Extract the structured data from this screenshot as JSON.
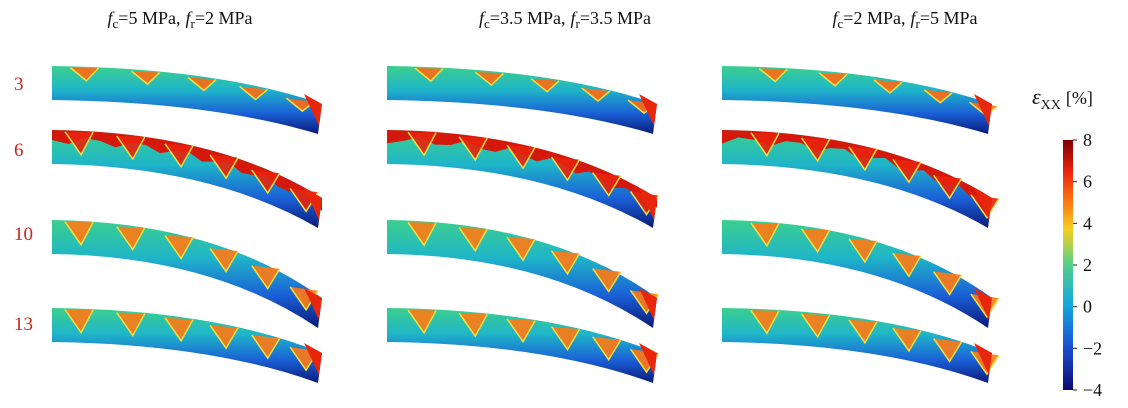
{
  "figure": {
    "symbol": "f",
    "sub_c": "c",
    "sub_r": "r",
    "equals": "=",
    "separator": ",",
    "columns": [
      {
        "fc": "5 MPa",
        "fr": "2 MPa"
      },
      {
        "fc": "3.5 MPa",
        "fr": "3.5 MPa"
      },
      {
        "fc": "2 MPa",
        "fr": "5 MPa"
      }
    ],
    "rows": [
      "3",
      "6",
      "10",
      "13"
    ],
    "colorbar": {
      "symbol": "ε",
      "subscript": "XX",
      "unit": "[%]",
      "lim": [
        -4,
        8
      ],
      "ticks": [
        8,
        6,
        4,
        2,
        0,
        {
          "value": -2,
          "label": "−2"
        },
        {
          "value": -4,
          "label": "−4"
        }
      ]
    }
  }
}
